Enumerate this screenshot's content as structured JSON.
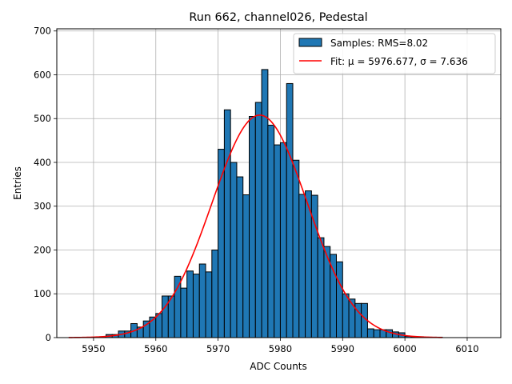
{
  "chart_data": {
    "type": "histogram",
    "title": "Run 662, channel026, Pedestal",
    "xlabel": "ADC Counts",
    "ylabel": "Entries",
    "xlim": [
      5944.1,
      6015.4
    ],
    "ylim": [
      0,
      705
    ],
    "xticks": [
      5950,
      5960,
      5970,
      5980,
      5990,
      6000,
      6010
    ],
    "yticks": [
      0,
      100,
      200,
      300,
      400,
      500,
      600,
      700
    ],
    "grid": true,
    "legend_position": "top-right",
    "bin_width": 1,
    "bins": {
      "left_edges": [
        5950,
        5951,
        5952,
        5953,
        5954,
        5955,
        5956,
        5957,
        5958,
        5959,
        5960,
        5961,
        5962,
        5963,
        5964,
        5965,
        5966,
        5967,
        5968,
        5969,
        5970,
        5971,
        5972,
        5973,
        5974,
        5975,
        5976,
        5977,
        5978,
        5979,
        5980,
        5981,
        5982,
        5983,
        5984,
        5985,
        5986,
        5987,
        5988,
        5989,
        5990,
        5991,
        5992,
        5993,
        5994,
        5995,
        5996,
        5997,
        5998,
        5999,
        6000,
        6001,
        6002,
        6003,
        6004,
        6005
      ],
      "counts": [
        1,
        2,
        7,
        7,
        15,
        15,
        32,
        24,
        38,
        47,
        55,
        95,
        95,
        140,
        113,
        152,
        145,
        168,
        150,
        200,
        430,
        520,
        400,
        367,
        326,
        505,
        537,
        612,
        485,
        440,
        445,
        580,
        405,
        327,
        335,
        325,
        228,
        208,
        190,
        173,
        100,
        88,
        78,
        78,
        20,
        18,
        18,
        18,
        13,
        11,
        3,
        2,
        2,
        1,
        1,
        1
      ]
    },
    "series": [
      {
        "name": "Samples: RMS=8.02",
        "type": "histogram",
        "color": "#1f77b4"
      },
      {
        "name": "Fit: μ = 5976.677, σ = 7.636",
        "type": "gaussian_fit",
        "mu": 5976.677,
        "sigma": 7.636,
        "amplitude": 508,
        "x_range": [
          5946,
          6006
        ],
        "color": "#ff0000"
      }
    ]
  }
}
